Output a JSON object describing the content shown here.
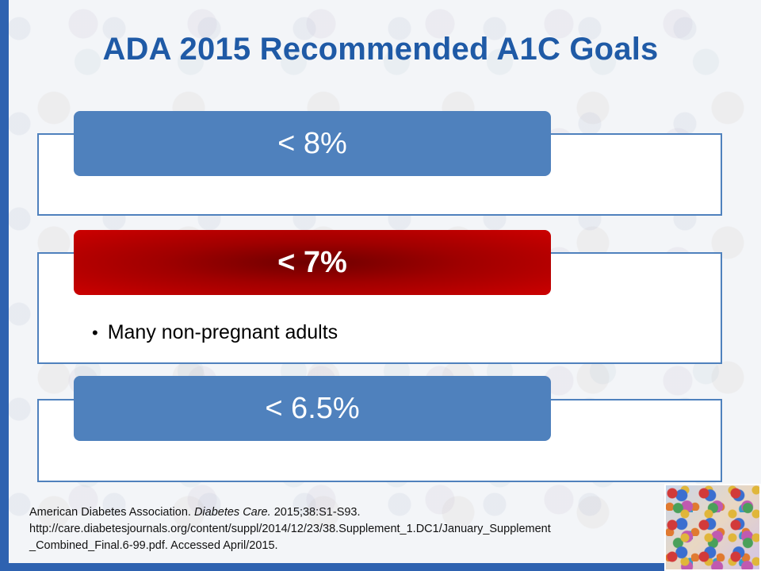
{
  "slide": {
    "title": "ADA 2015 Recommended A1C Goals",
    "goals": [
      {
        "label": "< 8%",
        "color": "#4f81bd",
        "bullets": []
      },
      {
        "label": "< 7%",
        "color": "#b00000",
        "bullets": [
          "Many non-pregnant adults"
        ]
      },
      {
        "label": "< 6.5%",
        "color": "#4f81bd",
        "bullets": []
      }
    ],
    "citation": {
      "author": "American Diabetes Association.",
      "journal": "Diabetes Care.",
      "ref": "2015;38:S1-S93.",
      "url_line1": "http://care.diabetesjournals.org/content/suppl/2014/12/23/38.Supplement_1.DC1/January_Supplement",
      "url_line2": "_Combined_Final.6-99.pdf. Accessed April/2015."
    },
    "accent_color": "#2e62b0"
  }
}
